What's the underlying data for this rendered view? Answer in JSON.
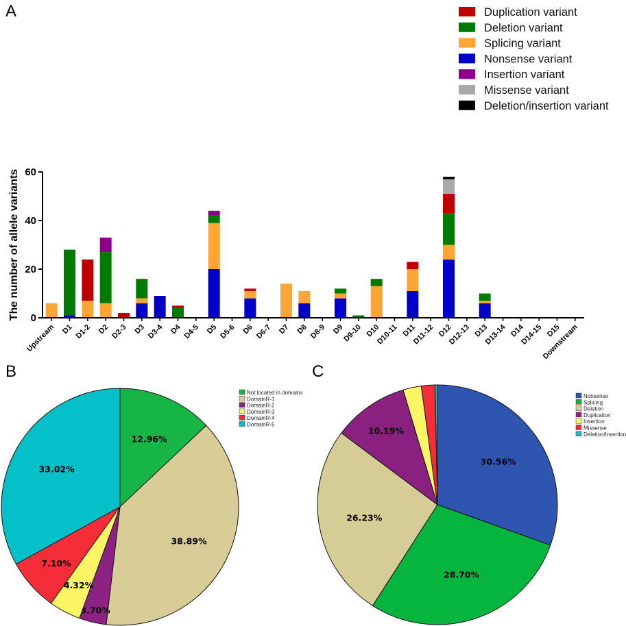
{
  "chart_data": [
    {
      "panel": "A",
      "type": "bar",
      "stacked": true,
      "ylabel": "The number of allele variants",
      "ylim": [
        0,
        60
      ],
      "yticks": [
        0,
        20,
        40,
        60
      ],
      "categories": [
        "Upstream",
        "D1",
        "D1-2",
        "D2",
        "D2-3",
        "D3",
        "D3-4",
        "D4",
        "D4-5",
        "D5",
        "D5-6",
        "D6",
        "D6-7",
        "D7",
        "D8",
        "D8-9",
        "D9",
        "D9-10",
        "D10",
        "D10-11",
        "D11",
        "D11-12",
        "D12",
        "D12-13",
        "D13",
        "D13-14",
        "D14",
        "D14-15",
        "D15",
        "Downstream"
      ],
      "series": [
        {
          "name": "Nonsense variant",
          "color": "#0000c8",
          "values": [
            0,
            1,
            0,
            0,
            0,
            6,
            9,
            0,
            0,
            20,
            0,
            8,
            0,
            0,
            6,
            0,
            8,
            0,
            0,
            0,
            11,
            0,
            24,
            0,
            6,
            0,
            0,
            0,
            0,
            0
          ]
        },
        {
          "name": "Splicing variant",
          "color": "#ffa533",
          "values": [
            6,
            0,
            7,
            6,
            0,
            2,
            0,
            0,
            0,
            19,
            0,
            3,
            0,
            14,
            5,
            0,
            2,
            0,
            13,
            0,
            9,
            0,
            6,
            0,
            1,
            0,
            0,
            0,
            0,
            0
          ]
        },
        {
          "name": "Deletion variant",
          "color": "#007a00",
          "values": [
            0,
            27,
            0,
            21,
            0,
            8,
            0,
            4,
            0,
            3,
            0,
            0,
            0,
            0,
            0,
            0,
            2,
            1,
            3,
            0,
            0,
            0,
            13,
            0,
            3,
            0,
            0,
            0,
            0,
            0
          ]
        },
        {
          "name": "Duplication variant",
          "color": "#c00000",
          "values": [
            0,
            0,
            17,
            0,
            2,
            0,
            0,
            1,
            0,
            0,
            0,
            1,
            0,
            0,
            0,
            0,
            0,
            0,
            0,
            0,
            3,
            0,
            8,
            0,
            0,
            0,
            0,
            0,
            0,
            0
          ]
        },
        {
          "name": "Insertion variant",
          "color": "#8c008c",
          "values": [
            0,
            0,
            0,
            6,
            0,
            0,
            0,
            0,
            0,
            2,
            0,
            0,
            0,
            0,
            0,
            0,
            0,
            0,
            0,
            0,
            0,
            0,
            0,
            0,
            0,
            0,
            0,
            0,
            0,
            0
          ]
        },
        {
          "name": "Missense variant",
          "color": "#a8a8ad",
          "values": [
            0,
            0,
            0,
            0,
            0,
            0,
            0,
            0,
            0,
            0,
            0,
            0,
            0,
            0,
            0,
            0,
            0,
            0,
            0,
            0,
            0,
            0,
            6,
            0,
            0,
            0,
            0,
            0,
            0,
            0
          ]
        },
        {
          "name": "Deletion/insertion variant",
          "color": "#000000",
          "values": [
            0,
            0,
            0,
            0,
            0,
            0,
            0,
            0,
            0,
            0,
            0,
            0,
            0,
            0,
            0,
            0,
            0,
            0,
            0,
            0,
            0,
            0,
            1,
            0,
            0,
            0,
            0,
            0,
            0,
            0
          ]
        }
      ],
      "legend": [
        {
          "label": "Duplication variant",
          "color": "#c00000"
        },
        {
          "label": "Deletion variant",
          "color": "#007a00"
        },
        {
          "label": "Splicing variant",
          "color": "#ffa533"
        },
        {
          "label": "Nonsense variant",
          "color": "#0000c8"
        },
        {
          "label": "Insertion variant",
          "color": "#8c008c"
        },
        {
          "label": "Missense variant",
          "color": "#a8a8ad"
        },
        {
          "label": "Deletion/insertion variant",
          "color": "#000000"
        }
      ]
    },
    {
      "panel": "B",
      "type": "pie",
      "slices": [
        {
          "name": "Not located in domains",
          "value": 12.96,
          "label": "12.96%",
          "color": "#17b545"
        },
        {
          "name": "DomainR-1",
          "value": 38.89,
          "label": "38.89%",
          "color": "#d8cd96"
        },
        {
          "name": "DomainR-2",
          "value": 3.7,
          "label": "3.70%",
          "color": "#8c2383"
        },
        {
          "name": "DomainR-3",
          "value": 4.32,
          "label": "4.32%",
          "color": "#fbf566"
        },
        {
          "name": "DomainR-4",
          "value": 7.1,
          "label": "7.10%",
          "color": "#f52d39"
        },
        {
          "name": "DomainR-5",
          "value": 33.02,
          "label": "33.02%",
          "color": "#04c0c8"
        }
      ]
    },
    {
      "panel": "C",
      "type": "pie",
      "slices": [
        {
          "name": "Nonsense",
          "value": 30.56,
          "label": "30.56%",
          "color": "#2e55b0"
        },
        {
          "name": "Splicing",
          "value": 28.7,
          "label": "28.70%",
          "color": "#05b53e"
        },
        {
          "name": "Deletion",
          "value": 26.23,
          "label": "26.23%",
          "color": "#d5cd95"
        },
        {
          "name": "Duplication",
          "value": 10.19,
          "label": "10.19%",
          "color": "#8a2080"
        },
        {
          "name": "Insertion",
          "value": 2.47,
          "label": "",
          "color": "#fcf566"
        },
        {
          "name": "Missense",
          "value": 1.85,
          "label": "",
          "color": "#f52d39"
        },
        {
          "name": "Deletion/Insertion",
          "value": 0.31,
          "label": "",
          "color": "#14bfc8"
        }
      ]
    }
  ]
}
